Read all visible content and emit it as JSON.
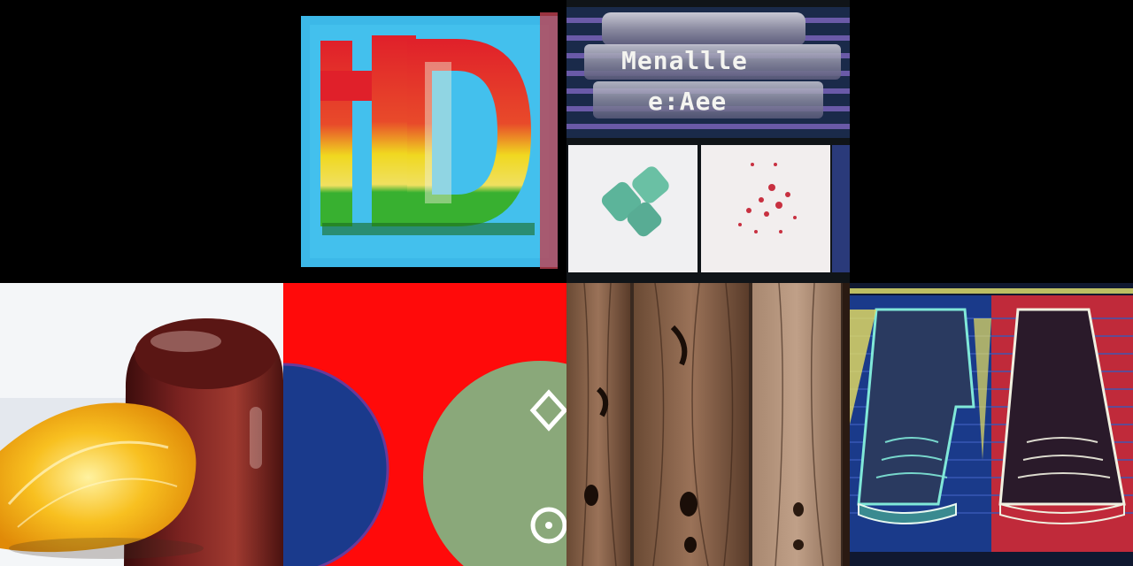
{
  "tiles": [
    {
      "id": "hd-logo",
      "row": 0,
      "col": 0
    },
    {
      "id": "hd-logo-sign",
      "row": 0,
      "col": 1
    },
    {
      "id": "metallic-banner",
      "row": 0,
      "col": 2,
      "text_lines": [
        "Menallle",
        "e:Aee"
      ]
    },
    {
      "id": "black-empty",
      "row": 0,
      "col": 3
    },
    {
      "id": "orange-and-jar",
      "row": 1,
      "col": 0
    },
    {
      "id": "red-with-circles",
      "row": 1,
      "col": 1
    },
    {
      "id": "wood-planks",
      "row": 1,
      "col": 2
    },
    {
      "id": "neon-cones",
      "row": 1,
      "col": 3
    }
  ],
  "colors": {
    "sky_blue": "#3cb8e8",
    "logo_red": "#e0202a",
    "logo_yellow": "#f0d820",
    "logo_green": "#38b030",
    "banner_purple": "#6a5aa8",
    "orange": "#f6b21a",
    "jar": "#6e1a18",
    "disk_blue": "#1a3a8c",
    "disk_green": "#8aa87a",
    "wood": "#8a6448"
  }
}
